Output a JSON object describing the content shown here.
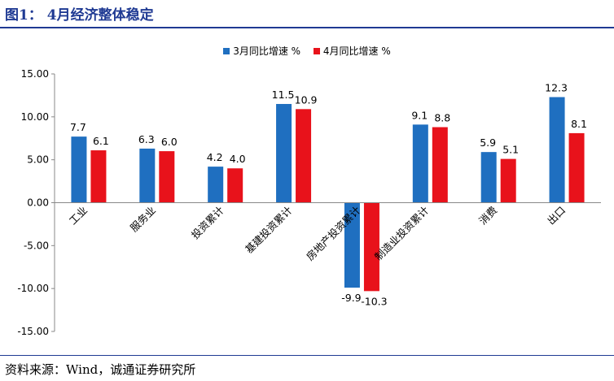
{
  "header": {
    "title": "图1：  4月经济整体稳定"
  },
  "footer": {
    "source": "资料来源：Wind，诚通证券研究所"
  },
  "colors": {
    "accent": "#1f3a93",
    "series1": "#1f6fc0",
    "series2": "#e8121b"
  },
  "chart_data": {
    "type": "bar",
    "categories": [
      "工业",
      "服务业",
      "投资累计",
      "基建投资累计",
      "房地产投资累计",
      "制造业投资累计",
      "消费",
      "出口"
    ],
    "series": [
      {
        "name": "3月同比增速 %",
        "values": [
          7.7,
          6.3,
          4.2,
          11.5,
          -9.9,
          9.1,
          5.9,
          12.3
        ],
        "labels": [
          "7.7",
          "6.3",
          "4.2",
          "11.5",
          "-9.9",
          "9.1",
          "5.9",
          "12.3"
        ]
      },
      {
        "name": "4月同比增速 %",
        "values": [
          6.1,
          6.0,
          4.0,
          10.9,
          -10.3,
          8.8,
          5.1,
          8.1
        ],
        "labels": [
          "6.1",
          "6.0",
          "4.0",
          "10.9",
          "-10.3",
          "8.8",
          "5.1",
          "8.1"
        ]
      }
    ],
    "yticks": [
      "15.00",
      "10.00",
      "5.00",
      "0.00",
      "-5.00",
      "-10.00",
      "-15.00"
    ],
    "ylim": [
      -15,
      15
    ],
    "legend_position": "top-center",
    "grid": false
  }
}
